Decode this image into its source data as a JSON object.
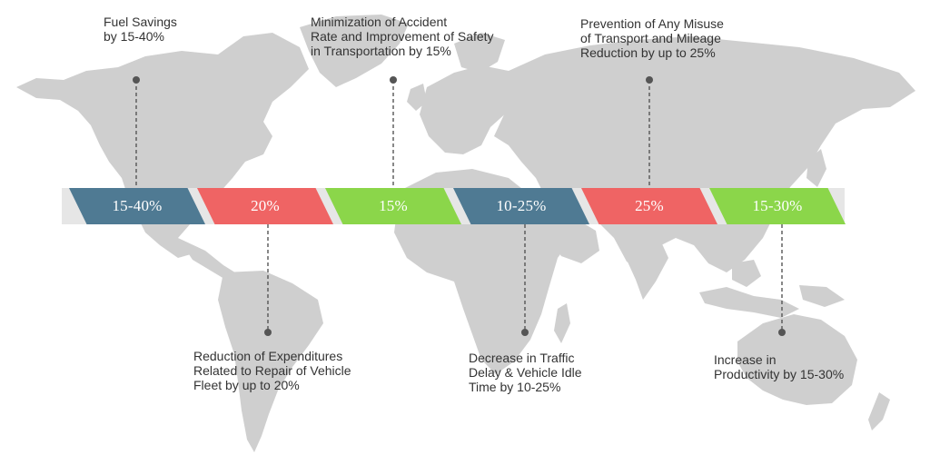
{
  "colors": {
    "blue": "#4f7a93",
    "red": "#ef6464",
    "green": "#8bd64a",
    "map": "#cfcfcf",
    "connector": "#555555"
  },
  "segments": [
    {
      "value": "15-40%",
      "color": "blue"
    },
    {
      "value": "20%",
      "color": "red"
    },
    {
      "value": "15%",
      "color": "green"
    },
    {
      "value": "10-25%",
      "color": "blue"
    },
    {
      "value": "25%",
      "color": "red"
    },
    {
      "value": "15-30%",
      "color": "green"
    }
  ],
  "labels": {
    "fuel_savings": "Fuel Savings\nby 15-40%",
    "expenditures": "Reduction of Expenditures\nRelated to Repair of Vehicle\nFleet by up to 20%",
    "safety": "Minimization of Accident\nRate and Improvement of Safety\nin Transportation by 15%",
    "traffic_delay": "Decrease in Traffic\nDelay & Vehicle Idle\nTime by 10-25%",
    "misuse": "Prevention of Any Misuse\nof Transport and Mileage\nReduction by up to 25%",
    "productivity": "Increase in\nProductivity by 15-30%"
  }
}
